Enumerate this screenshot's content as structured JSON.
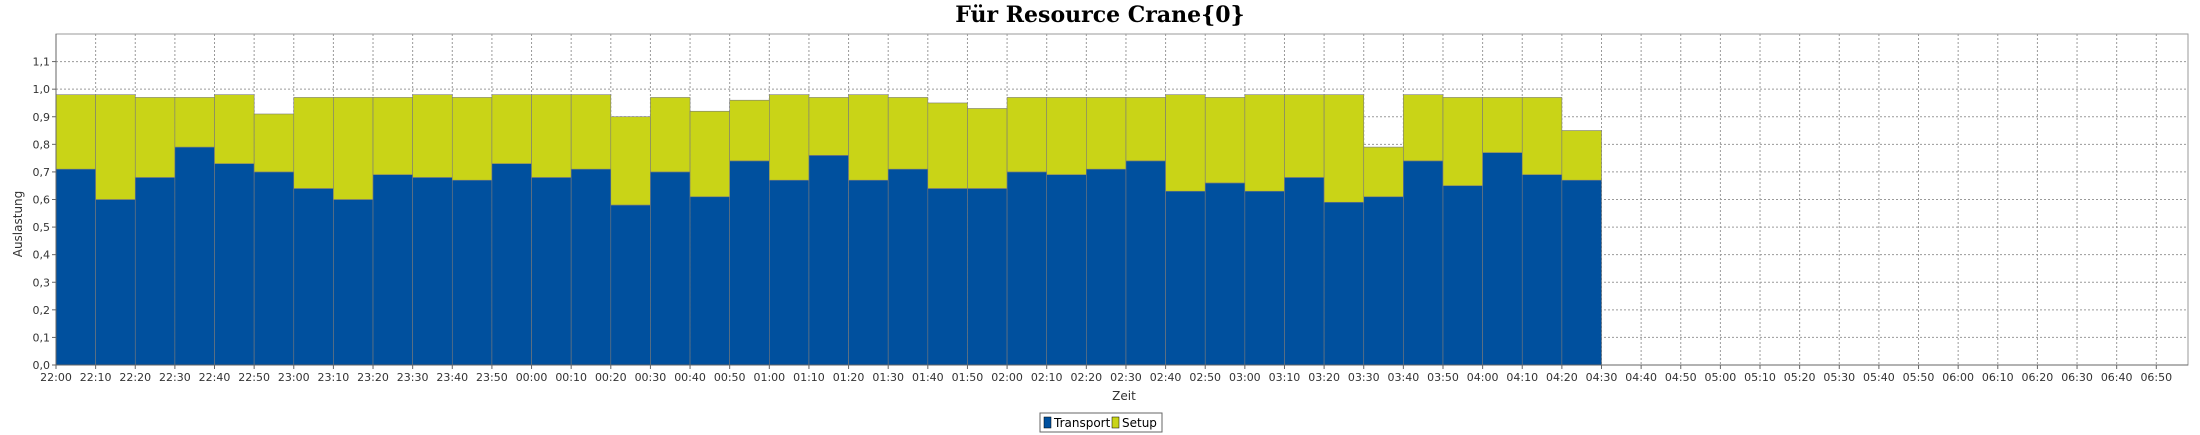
{
  "chart_data": {
    "type": "bar",
    "stacked": true,
    "title": "Für Resource Crane{0}",
    "xlabel": "Zeit",
    "ylabel": "Auslastung",
    "ylim": [
      0,
      1.2
    ],
    "yticks": [
      "0,0",
      "0,1",
      "0,2",
      "0,3",
      "0,4",
      "0,5",
      "0,6",
      "0,7",
      "0,8",
      "0,9",
      "1,0",
      "1,1"
    ],
    "xticks": [
      "22:00",
      "22:10",
      "22:20",
      "22:30",
      "22:40",
      "22:50",
      "23:00",
      "23:10",
      "23:20",
      "23:30",
      "23:40",
      "23:50",
      "00:00",
      "00:10",
      "00:20",
      "00:30",
      "00:40",
      "00:50",
      "01:00",
      "01:10",
      "01:20",
      "01:30",
      "01:40",
      "01:50",
      "02:00",
      "02:10",
      "02:20",
      "02:30",
      "02:40",
      "02:50",
      "03:00",
      "03:10",
      "03:20",
      "03:30",
      "03:40",
      "03:50",
      "04:00",
      "04:10",
      "04:20",
      "04:30",
      "04:40",
      "04:50",
      "05:00",
      "05:10",
      "05:20",
      "05:30",
      "05:40",
      "05:50",
      "06:00",
      "06:10",
      "06:20",
      "06:30",
      "06:40",
      "06:50"
    ],
    "grid": true,
    "legend_position": "bottom",
    "series": [
      {
        "name": "Transport",
        "color": "#00509e",
        "values": [
          0.71,
          0.6,
          0.68,
          0.79,
          0.73,
          0.7,
          0.64,
          0.6,
          0.69,
          0.68,
          0.67,
          0.73,
          0.68,
          0.71,
          0.58,
          0.7,
          0.61,
          0.74,
          0.67,
          0.76,
          0.67,
          0.71,
          0.64,
          0.64,
          0.7,
          0.69,
          0.71,
          0.74,
          0.63,
          0.66,
          0.63,
          0.68,
          0.59,
          0.61,
          0.74,
          0.65,
          0.77,
          0.69,
          0.67
        ]
      },
      {
        "name": "Setup",
        "color": "#c9d417",
        "values": [
          0.27,
          0.38,
          0.29,
          0.18,
          0.25,
          0.21,
          0.33,
          0.37,
          0.28,
          0.3,
          0.3,
          0.25,
          0.3,
          0.27,
          0.32,
          0.27,
          0.31,
          0.22,
          0.31,
          0.21,
          0.31,
          0.26,
          0.31,
          0.29,
          0.27,
          0.28,
          0.26,
          0.23,
          0.35,
          0.31,
          0.35,
          0.3,
          0.39,
          0.18,
          0.24,
          0.32,
          0.2,
          0.28,
          0.18
        ]
      }
    ]
  }
}
